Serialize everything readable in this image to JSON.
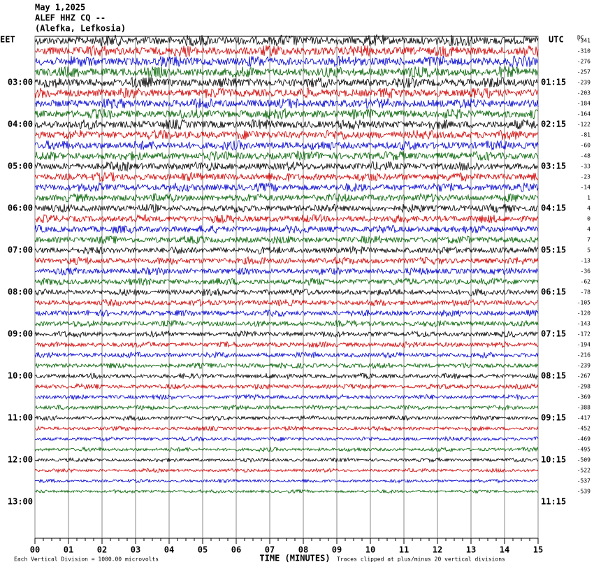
{
  "header": {
    "date": "May 1,2025",
    "station": "ALEF HHZ CQ --",
    "location": "(Alefka, Lefkosia)"
  },
  "left_zone": "EET",
  "right_zone": "UTC",
  "dc_title": "DC",
  "left_times": [
    "03:00",
    "04:00",
    "05:00",
    "06:00",
    "07:00",
    "08:00",
    "09:00",
    "10:00",
    "11:00",
    "12:00",
    "13:00"
  ],
  "right_times": [
    "01:15",
    "02:15",
    "03:15",
    "04:15",
    "05:15",
    "06:15",
    "07:15",
    "08:15",
    "09:15",
    "10:15",
    "11:15"
  ],
  "dc": [
    "-341",
    "-310",
    "-276",
    "-257",
    "-239",
    "-203",
    "-184",
    "-164",
    "-122",
    "-81",
    "-60",
    "-48",
    "-33",
    "-23",
    "-14",
    "1",
    "4",
    "0",
    "4",
    "7",
    "5",
    "-13",
    "-36",
    "-62",
    "-78",
    "-105",
    "-120",
    "-143",
    "-172",
    "-194",
    "-216",
    "-239",
    "-267",
    "-298",
    "-369",
    "-388",
    "-417",
    "-452",
    "-469",
    "-495",
    "-509",
    "-522",
    "-537",
    "-539"
  ],
  "x_ticks": [
    "00",
    "01",
    "02",
    "03",
    "04",
    "05",
    "06",
    "07",
    "08",
    "09",
    "10",
    "11",
    "12",
    "13",
    "14",
    "15"
  ],
  "x_title": "TIME (MINUTES)",
  "footer_left": "Each Vertical Division = 1000.00 microvolts",
  "footer_right": "Traces clipped at plus/minus 20 vertical divisions",
  "trace_colors": [
    "#000000",
    "#d00000",
    "#0000d0",
    "#006000"
  ]
}
